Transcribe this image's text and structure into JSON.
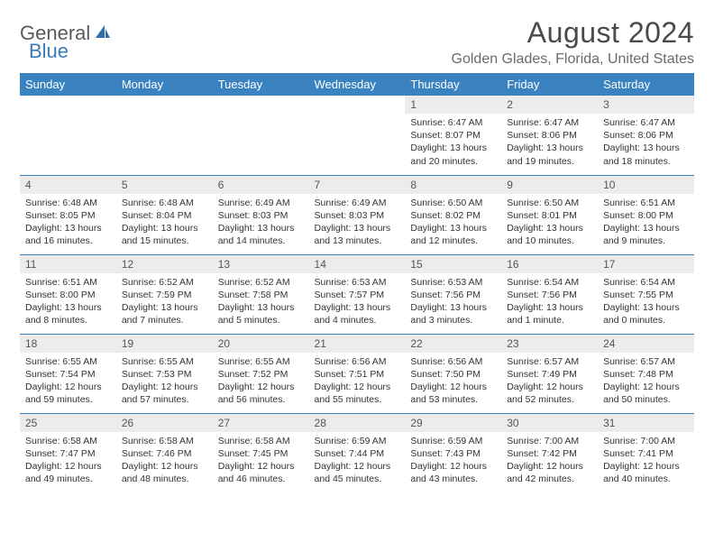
{
  "logo": {
    "part1": "General",
    "part2": "Blue"
  },
  "title": "August 2024",
  "location": "Golden Glades, Florida, United States",
  "colors": {
    "header_bg": "#3b83c0",
    "header_text": "#ffffff",
    "daynum_bg": "#ececec",
    "border": "#3b83c0",
    "logo_gray": "#5a5a5a",
    "logo_blue": "#3a7ab8"
  },
  "typography": {
    "title_fontsize": 32,
    "location_fontsize": 16,
    "dayheader_fontsize": 13,
    "daynum_fontsize": 12,
    "body_fontsize": 10.5
  },
  "day_headers": [
    "Sunday",
    "Monday",
    "Tuesday",
    "Wednesday",
    "Thursday",
    "Friday",
    "Saturday"
  ],
  "weeks": [
    [
      null,
      null,
      null,
      null,
      {
        "n": "1",
        "sunrise": "6:47 AM",
        "sunset": "8:07 PM",
        "dl1": "Daylight: 13 hours",
        "dl2": "and 20 minutes."
      },
      {
        "n": "2",
        "sunrise": "6:47 AM",
        "sunset": "8:06 PM",
        "dl1": "Daylight: 13 hours",
        "dl2": "and 19 minutes."
      },
      {
        "n": "3",
        "sunrise": "6:47 AM",
        "sunset": "8:06 PM",
        "dl1": "Daylight: 13 hours",
        "dl2": "and 18 minutes."
      }
    ],
    [
      {
        "n": "4",
        "sunrise": "6:48 AM",
        "sunset": "8:05 PM",
        "dl1": "Daylight: 13 hours",
        "dl2": "and 16 minutes."
      },
      {
        "n": "5",
        "sunrise": "6:48 AM",
        "sunset": "8:04 PM",
        "dl1": "Daylight: 13 hours",
        "dl2": "and 15 minutes."
      },
      {
        "n": "6",
        "sunrise": "6:49 AM",
        "sunset": "8:03 PM",
        "dl1": "Daylight: 13 hours",
        "dl2": "and 14 minutes."
      },
      {
        "n": "7",
        "sunrise": "6:49 AM",
        "sunset": "8:03 PM",
        "dl1": "Daylight: 13 hours",
        "dl2": "and 13 minutes."
      },
      {
        "n": "8",
        "sunrise": "6:50 AM",
        "sunset": "8:02 PM",
        "dl1": "Daylight: 13 hours",
        "dl2": "and 12 minutes."
      },
      {
        "n": "9",
        "sunrise": "6:50 AM",
        "sunset": "8:01 PM",
        "dl1": "Daylight: 13 hours",
        "dl2": "and 10 minutes."
      },
      {
        "n": "10",
        "sunrise": "6:51 AM",
        "sunset": "8:00 PM",
        "dl1": "Daylight: 13 hours",
        "dl2": "and 9 minutes."
      }
    ],
    [
      {
        "n": "11",
        "sunrise": "6:51 AM",
        "sunset": "8:00 PM",
        "dl1": "Daylight: 13 hours",
        "dl2": "and 8 minutes."
      },
      {
        "n": "12",
        "sunrise": "6:52 AM",
        "sunset": "7:59 PM",
        "dl1": "Daylight: 13 hours",
        "dl2": "and 7 minutes."
      },
      {
        "n": "13",
        "sunrise": "6:52 AM",
        "sunset": "7:58 PM",
        "dl1": "Daylight: 13 hours",
        "dl2": "and 5 minutes."
      },
      {
        "n": "14",
        "sunrise": "6:53 AM",
        "sunset": "7:57 PM",
        "dl1": "Daylight: 13 hours",
        "dl2": "and 4 minutes."
      },
      {
        "n": "15",
        "sunrise": "6:53 AM",
        "sunset": "7:56 PM",
        "dl1": "Daylight: 13 hours",
        "dl2": "and 3 minutes."
      },
      {
        "n": "16",
        "sunrise": "6:54 AM",
        "sunset": "7:56 PM",
        "dl1": "Daylight: 13 hours",
        "dl2": "and 1 minute."
      },
      {
        "n": "17",
        "sunrise": "6:54 AM",
        "sunset": "7:55 PM",
        "dl1": "Daylight: 13 hours",
        "dl2": "and 0 minutes."
      }
    ],
    [
      {
        "n": "18",
        "sunrise": "6:55 AM",
        "sunset": "7:54 PM",
        "dl1": "Daylight: 12 hours",
        "dl2": "and 59 minutes."
      },
      {
        "n": "19",
        "sunrise": "6:55 AM",
        "sunset": "7:53 PM",
        "dl1": "Daylight: 12 hours",
        "dl2": "and 57 minutes."
      },
      {
        "n": "20",
        "sunrise": "6:55 AM",
        "sunset": "7:52 PM",
        "dl1": "Daylight: 12 hours",
        "dl2": "and 56 minutes."
      },
      {
        "n": "21",
        "sunrise": "6:56 AM",
        "sunset": "7:51 PM",
        "dl1": "Daylight: 12 hours",
        "dl2": "and 55 minutes."
      },
      {
        "n": "22",
        "sunrise": "6:56 AM",
        "sunset": "7:50 PM",
        "dl1": "Daylight: 12 hours",
        "dl2": "and 53 minutes."
      },
      {
        "n": "23",
        "sunrise": "6:57 AM",
        "sunset": "7:49 PM",
        "dl1": "Daylight: 12 hours",
        "dl2": "and 52 minutes."
      },
      {
        "n": "24",
        "sunrise": "6:57 AM",
        "sunset": "7:48 PM",
        "dl1": "Daylight: 12 hours",
        "dl2": "and 50 minutes."
      }
    ],
    [
      {
        "n": "25",
        "sunrise": "6:58 AM",
        "sunset": "7:47 PM",
        "dl1": "Daylight: 12 hours",
        "dl2": "and 49 minutes."
      },
      {
        "n": "26",
        "sunrise": "6:58 AM",
        "sunset": "7:46 PM",
        "dl1": "Daylight: 12 hours",
        "dl2": "and 48 minutes."
      },
      {
        "n": "27",
        "sunrise": "6:58 AM",
        "sunset": "7:45 PM",
        "dl1": "Daylight: 12 hours",
        "dl2": "and 46 minutes."
      },
      {
        "n": "28",
        "sunrise": "6:59 AM",
        "sunset": "7:44 PM",
        "dl1": "Daylight: 12 hours",
        "dl2": "and 45 minutes."
      },
      {
        "n": "29",
        "sunrise": "6:59 AM",
        "sunset": "7:43 PM",
        "dl1": "Daylight: 12 hours",
        "dl2": "and 43 minutes."
      },
      {
        "n": "30",
        "sunrise": "7:00 AM",
        "sunset": "7:42 PM",
        "dl1": "Daylight: 12 hours",
        "dl2": "and 42 minutes."
      },
      {
        "n": "31",
        "sunrise": "7:00 AM",
        "sunset": "7:41 PM",
        "dl1": "Daylight: 12 hours",
        "dl2": "and 40 minutes."
      }
    ]
  ],
  "labels": {
    "sunrise_prefix": "Sunrise: ",
    "sunset_prefix": "Sunset: "
  }
}
